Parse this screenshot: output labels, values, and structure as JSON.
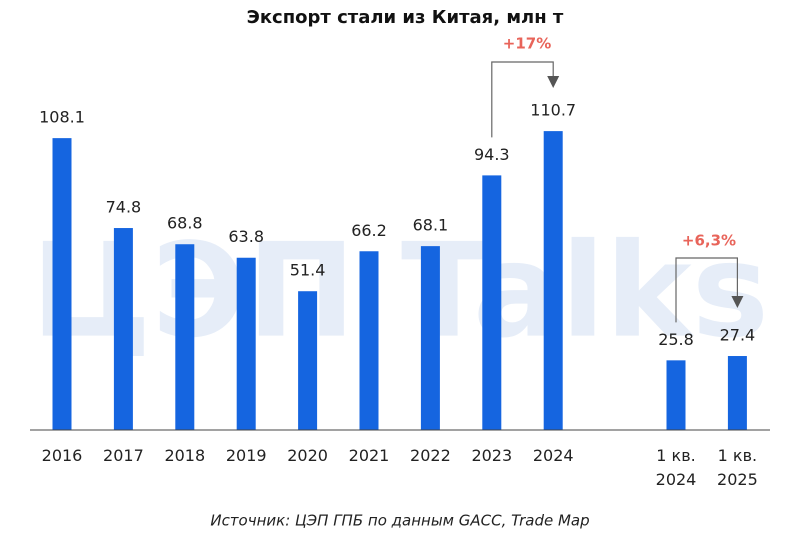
{
  "chart_data": {
    "type": "bar",
    "title": "Экспорт стали из Китая, млн т",
    "categories": [
      "2016",
      "2017",
      "2018",
      "2019",
      "2020",
      "2021",
      "2022",
      "2023",
      "2024",
      "1 кв. 2024",
      "1 кв. 2025"
    ],
    "values": [
      108.1,
      74.8,
      68.8,
      63.8,
      51.4,
      66.2,
      68.1,
      94.3,
      110.7,
      25.8,
      27.4
    ],
    "color": "#1565e0",
    "ylim": [
      0,
      120
    ],
    "annotations": [
      "+17%",
      "+6,3%"
    ],
    "source": "Источник: ЦЭП ГПБ по данным GACC, Trade Map",
    "watermark": "ЦЭП Talks"
  }
}
